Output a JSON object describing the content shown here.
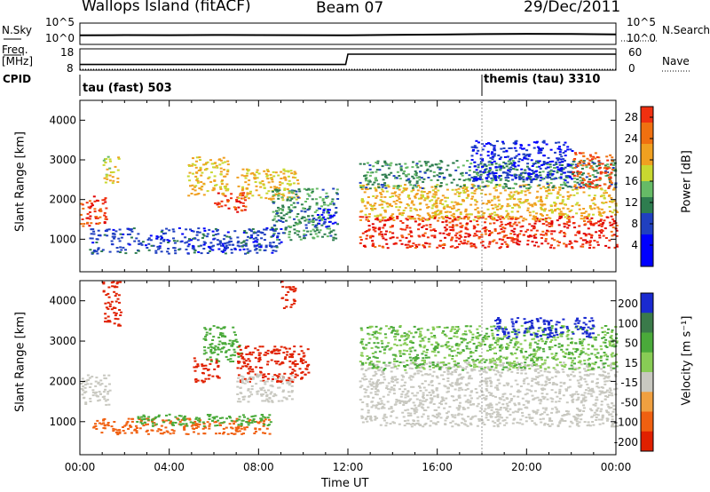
{
  "header": {
    "station": "Wallops Island (fitACF)",
    "beam": "Beam 07",
    "date": "29/Dec/2011"
  },
  "labels": {
    "nsky": "N.Sky",
    "nsearch": "N.Search",
    "freq_line1": "Freq.",
    "freq_line2": "[MHz]",
    "nave": "Nave",
    "cpid": "CPID",
    "cpid_1": "tau (fast) 503",
    "cpid_2": "themis (tau) 3310",
    "x_axis": "Time UT",
    "y_axis": "Slant Range [km]",
    "power_bar": "Power [dB]",
    "velocity_bar": "Velocity [m s⁻¹]"
  },
  "noise_ticks": {
    "left": [
      "10^5",
      "10^0"
    ],
    "right": [
      "10^5",
      "10^0"
    ]
  },
  "freq_ticks": [
    "18",
    "8"
  ],
  "nave_ticks": [
    "60",
    "0"
  ],
  "chart_data": [
    {
      "type": "line",
      "name": "noise",
      "series": [
        {
          "name": "N.Sky",
          "x": [
            0,
            2,
            4,
            6,
            8,
            10,
            12,
            14,
            16,
            18,
            20,
            22,
            24
          ],
          "y": [
            100,
            120,
            110,
            130,
            120,
            115,
            100,
            140,
            180,
            250,
            300,
            260,
            200
          ]
        }
      ]
    },
    {
      "type": "line",
      "name": "frequency",
      "series": [
        {
          "name": "Freq.",
          "x": [
            0,
            11.9,
            12.0,
            24
          ],
          "y": [
            10.7,
            10.7,
            15.5,
            15.5
          ]
        },
        {
          "name": "Nave",
          "x": [
            0,
            24
          ],
          "y": [
            0,
            0
          ]
        }
      ],
      "cpid_changes": [
        {
          "x": 0,
          "label": "tau (fast) 503"
        },
        {
          "x": 18,
          "label": "themis (tau) 3310"
        }
      ]
    },
    {
      "type": "heatmap",
      "name": "power",
      "xlabel": "Time UT",
      "ylabel": "Slant Range [km]",
      "xlim": [
        0,
        24
      ],
      "ylim": [
        180,
        4500
      ],
      "xticks": [
        "00:00",
        "04:00",
        "08:00",
        "12:00",
        "16:00",
        "20:00",
        "00:00"
      ],
      "yticks": [
        1000,
        2000,
        3000,
        4000
      ],
      "colorbar": {
        "label": "Power [dB]",
        "ticks": [
          4,
          8,
          12,
          16,
          20,
          24,
          28
        ],
        "range": [
          0,
          30
        ]
      },
      "regions": [
        {
          "x": [
            0.0,
            1.2
          ],
          "y": [
            1350,
            2100
          ],
          "value": 28
        },
        {
          "x": [
            1.0,
            1.7
          ],
          "y": [
            2400,
            3100
          ],
          "value": 18
        },
        {
          "x": [
            0.4,
            9.0
          ],
          "y": [
            650,
            1300
          ],
          "value": 8
        },
        {
          "x": [
            4.8,
            6.6
          ],
          "y": [
            2100,
            3100
          ],
          "value": 20
        },
        {
          "x": [
            6.0,
            7.4
          ],
          "y": [
            1700,
            2200
          ],
          "value": 28
        },
        {
          "x": [
            7.0,
            9.8
          ],
          "y": [
            2000,
            2800
          ],
          "value": 20
        },
        {
          "x": [
            8.5,
            11.5
          ],
          "y": [
            1000,
            2300
          ],
          "value": 12
        },
        {
          "x": [
            10.5,
            11.4
          ],
          "y": [
            1300,
            1800
          ],
          "value": 4
        },
        {
          "x": [
            12.5,
            24.0
          ],
          "y": [
            800,
            1600
          ],
          "value": 29
        },
        {
          "x": [
            12.5,
            24.0
          ],
          "y": [
            1500,
            2400
          ],
          "value": 20
        },
        {
          "x": [
            12.5,
            24.0
          ],
          "y": [
            2300,
            3000
          ],
          "value": 12
        },
        {
          "x": [
            17.5,
            22.0
          ],
          "y": [
            2500,
            3500
          ],
          "value": 6
        },
        {
          "x": [
            22.0,
            23.8
          ],
          "y": [
            2300,
            3200
          ],
          "value": 27
        }
      ]
    },
    {
      "type": "heatmap",
      "name": "velocity",
      "xlabel": "Time UT",
      "ylabel": "Slant Range [km]",
      "xlim": [
        0,
        24
      ],
      "ylim": [
        180,
        4500
      ],
      "xticks": [
        "00:00",
        "04:00",
        "08:00",
        "12:00",
        "16:00",
        "20:00",
        "00:00"
      ],
      "yticks": [
        1000,
        2000,
        3000,
        4000
      ],
      "colorbar": {
        "label": "Velocity [m s⁻¹]",
        "ticks": [
          "200",
          "100",
          "50",
          "15",
          "-15",
          "-50",
          "-100",
          "-200"
        ],
        "range": [
          -250,
          250
        ]
      },
      "regions": [
        {
          "x": [
            0.0,
            1.3
          ],
          "y": [
            1400,
            2200
          ],
          "value": 0
        },
        {
          "x": [
            1.0,
            1.8
          ],
          "y": [
            3400,
            4500
          ],
          "value": -200
        },
        {
          "x": [
            0.5,
            8.5
          ],
          "y": [
            700,
            1100
          ],
          "value": -60
        },
        {
          "x": [
            2.5,
            8.5
          ],
          "y": [
            900,
            1200
          ],
          "value": 40
        },
        {
          "x": [
            5.0,
            6.2
          ],
          "y": [
            2000,
            2600
          ],
          "value": -200
        },
        {
          "x": [
            5.5,
            7.2
          ],
          "y": [
            2500,
            3400
          ],
          "value": 40
        },
        {
          "x": [
            7.0,
            10.2
          ],
          "y": [
            2000,
            2900
          ],
          "value": -200
        },
        {
          "x": [
            7.0,
            9.5
          ],
          "y": [
            1500,
            2200
          ],
          "value": 0
        },
        {
          "x": [
            9.0,
            9.6
          ],
          "y": [
            3800,
            4500
          ],
          "value": -200
        },
        {
          "x": [
            12.5,
            24.0
          ],
          "y": [
            900,
            2500
          ],
          "value": 0
        },
        {
          "x": [
            12.5,
            24.0
          ],
          "y": [
            2300,
            3400
          ],
          "value": 30
        },
        {
          "x": [
            18.5,
            23.0
          ],
          "y": [
            3100,
            3600
          ],
          "value": 200
        }
      ]
    }
  ]
}
